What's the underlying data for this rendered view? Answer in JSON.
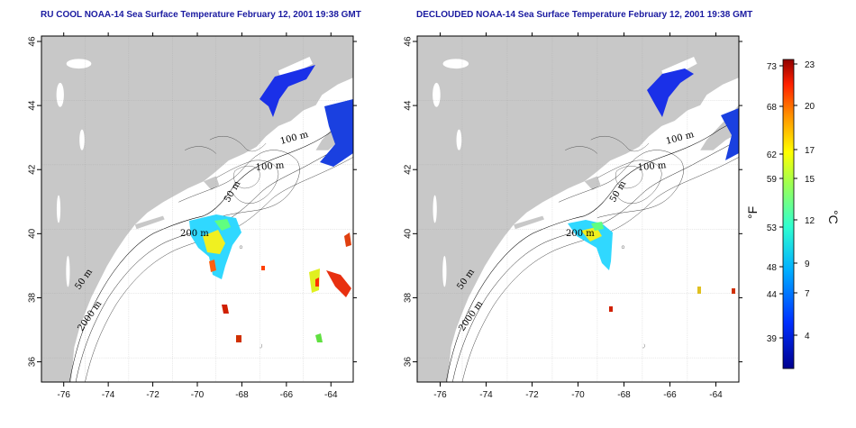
{
  "panels": [
    {
      "title": "RU COOL NOAA-14 Sea Surface Temperature February 12, 2001 19:38 GMT",
      "contour_labels": [
        "100 m",
        "100 m",
        "50 m",
        "200 m",
        "50 m",
        "2000 m"
      ]
    },
    {
      "title": "DECLOUDED NOAA-14 Sea Surface Temperature February 12, 2001 19:38 GMT",
      "contour_labels": [
        "100 m",
        "100 m",
        "50 m",
        "200 m",
        "50 m",
        "2000 m"
      ]
    }
  ],
  "axes": {
    "x_ticks": [
      "-76",
      "-74",
      "-72",
      "-70",
      "-68",
      "-66",
      "-64"
    ],
    "y_ticks": [
      "46",
      "44",
      "42",
      "40",
      "38",
      "36"
    ]
  },
  "colorbar": {
    "fahrenheit_label": "°F",
    "celsius_label": "°C",
    "fahrenheit_ticks": [
      "73",
      "68",
      "62",
      "59",
      "53",
      "48",
      "44",
      "39"
    ],
    "celsius_ticks": [
      "23",
      "20",
      "17",
      "15",
      "12",
      "9",
      "7",
      "4"
    ]
  },
  "colors": {
    "land": "#c8c8c8",
    "ocean": "#ffffff",
    "title": "#1a1aa0",
    "grid": "#999999"
  }
}
